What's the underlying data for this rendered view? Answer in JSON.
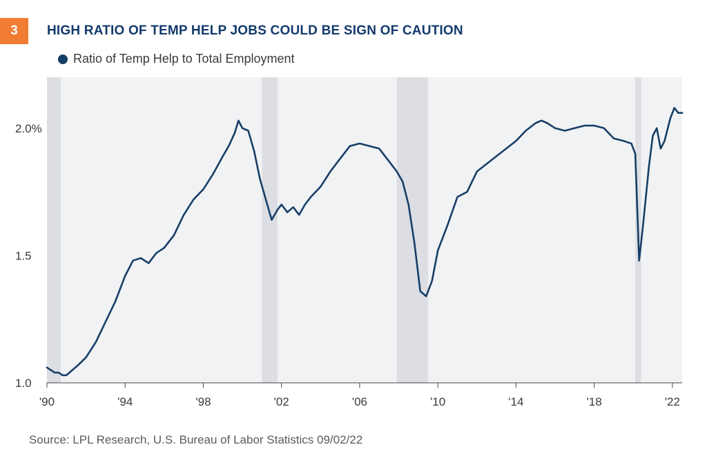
{
  "figure": {
    "badge_number": "3",
    "badge_color": "#f07d33",
    "title": "HIGH RATIO OF TEMP HELP JOBS COULD BE SIGN OF CAUTION",
    "title_color": "#123a6b",
    "source": "Source: LPL Research, U.S. Bureau of Labor Statistics 09/02/22"
  },
  "colors": {
    "line": "#163e66",
    "plot_background": "#f1f2f4",
    "recession_band": "#dcdee3",
    "axis_text": "#3a3a3a"
  },
  "chart_data": {
    "type": "line",
    "title": "HIGH RATIO OF TEMP HELP JOBS COULD BE SIGN OF CAUTION",
    "xlabel": "",
    "ylabel": "",
    "xlim": [
      1990.0,
      2022.5
    ],
    "ylim": [
      1.0,
      2.2
    ],
    "legend_position": "top-left",
    "grid": false,
    "x_ticks": [
      {
        "value": 1990,
        "label": "'90"
      },
      {
        "value": 1994,
        "label": "'94"
      },
      {
        "value": 1998,
        "label": "'98"
      },
      {
        "value": 2002,
        "label": "'02"
      },
      {
        "value": 2006,
        "label": "'06"
      },
      {
        "value": 2010,
        "label": "'10"
      },
      {
        "value": 2014,
        "label": "'14"
      },
      {
        "value": 2018,
        "label": "'18"
      },
      {
        "value": 2022,
        "label": "'22"
      }
    ],
    "y_ticks": [
      {
        "value": 1.0,
        "label": "1.0"
      },
      {
        "value": 1.5,
        "label": "1.5"
      },
      {
        "value": 2.0,
        "label": "2.0%"
      }
    ],
    "recessions": [
      [
        1990.0,
        1990.7
      ],
      [
        2001.0,
        2001.8
      ],
      [
        2007.9,
        2009.5
      ],
      [
        2020.1,
        2020.4
      ]
    ],
    "series": [
      {
        "name": "Ratio of Temp Help to Total Employment",
        "x": [
          1990.0,
          1990.2,
          1990.4,
          1990.6,
          1990.8,
          1991.0,
          1991.3,
          1991.6,
          1992.0,
          1992.5,
          1993.0,
          1993.5,
          1994.0,
          1994.4,
          1994.8,
          1995.2,
          1995.6,
          1996.0,
          1996.5,
          1997.0,
          1997.5,
          1998.0,
          1998.5,
          1999.0,
          1999.3,
          1999.6,
          1999.8,
          2000.0,
          2000.3,
          2000.6,
          2000.9,
          2001.2,
          2001.5,
          2001.8,
          2002.0,
          2002.3,
          2002.6,
          2002.9,
          2003.2,
          2003.5,
          2004.0,
          2004.5,
          2005.0,
          2005.5,
          2006.0,
          2006.5,
          2007.0,
          2007.5,
          2007.9,
          2008.2,
          2008.5,
          2008.8,
          2009.1,
          2009.4,
          2009.7,
          2010.0,
          2010.5,
          2011.0,
          2011.5,
          2012.0,
          2012.5,
          2013.0,
          2013.5,
          2014.0,
          2014.5,
          2015.0,
          2015.3,
          2015.6,
          2016.0,
          2016.5,
          2017.0,
          2017.5,
          2018.0,
          2018.5,
          2019.0,
          2019.5,
          2019.9,
          2020.1,
          2020.3,
          2020.5,
          2020.8,
          2021.0,
          2021.2,
          2021.4,
          2021.6,
          2021.9,
          2022.1,
          2022.3,
          2022.5
        ],
        "y": [
          1.06,
          1.05,
          1.04,
          1.04,
          1.03,
          1.03,
          1.05,
          1.07,
          1.1,
          1.16,
          1.24,
          1.32,
          1.42,
          1.48,
          1.49,
          1.47,
          1.51,
          1.53,
          1.58,
          1.66,
          1.72,
          1.76,
          1.82,
          1.89,
          1.93,
          1.98,
          2.03,
          2.0,
          1.99,
          1.91,
          1.8,
          1.72,
          1.64,
          1.68,
          1.7,
          1.67,
          1.69,
          1.66,
          1.7,
          1.73,
          1.77,
          1.83,
          1.88,
          1.93,
          1.94,
          1.93,
          1.92,
          1.87,
          1.83,
          1.79,
          1.7,
          1.55,
          1.36,
          1.34,
          1.4,
          1.52,
          1.62,
          1.73,
          1.75,
          1.83,
          1.86,
          1.89,
          1.92,
          1.95,
          1.99,
          2.02,
          2.03,
          2.02,
          2.0,
          1.99,
          2.0,
          2.01,
          2.01,
          2.0,
          1.96,
          1.95,
          1.94,
          1.9,
          1.48,
          1.62,
          1.85,
          1.97,
          2.0,
          1.92,
          1.95,
          2.04,
          2.08,
          2.06,
          2.06
        ]
      }
    ]
  }
}
